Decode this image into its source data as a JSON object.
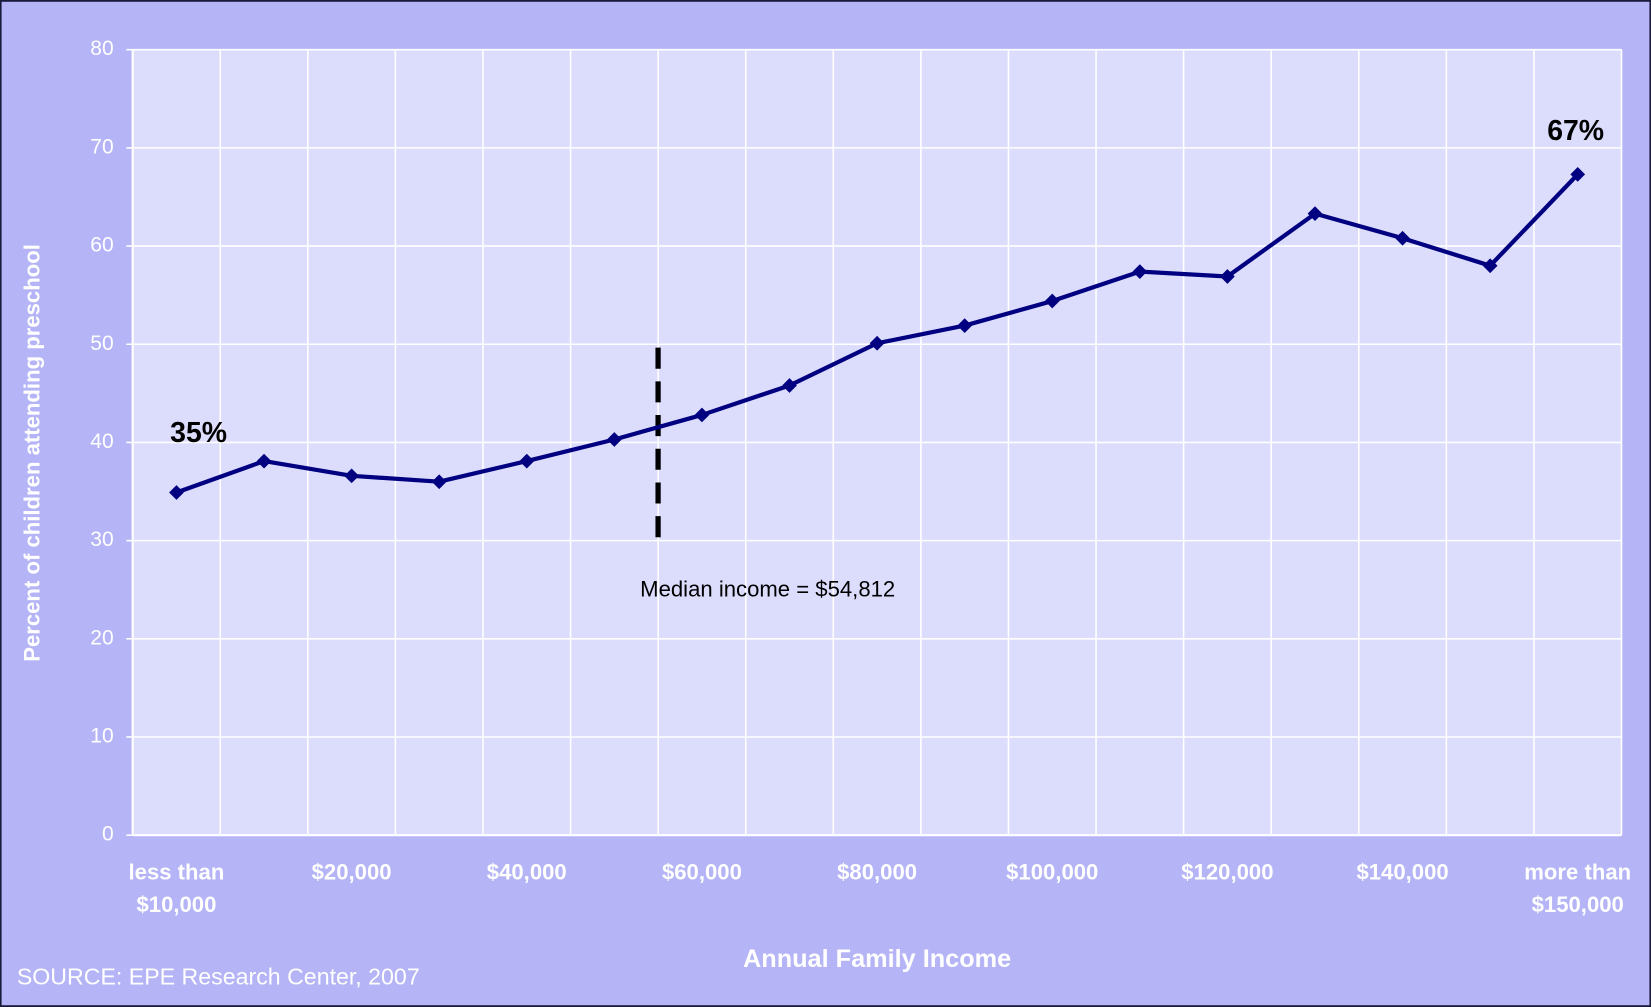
{
  "chart_data": {
    "type": "line",
    "y_label": "Percent of children attending preschool",
    "x_label": "Annual Family Income",
    "source": "SOURCE:  EPE Research Center, 2007",
    "annotation": "Median income = $54,812",
    "categories": [
      "less than $10,000",
      null,
      "$20,000",
      null,
      "$40,000",
      null,
      "$60,000",
      null,
      "$80,000",
      null,
      "$100,000",
      null,
      "$120,000",
      null,
      "$140,000",
      null,
      "more than $150,000"
    ],
    "values": [
      34.9,
      38.1,
      36.6,
      36.0,
      38.1,
      40.3,
      42.8,
      45.8,
      50.1,
      51.9,
      54.4,
      57.4,
      56.9,
      63.3,
      60.8,
      58.0,
      67.3
    ],
    "value_labels": [
      "35%",
      null,
      null,
      null,
      null,
      null,
      null,
      null,
      null,
      null,
      null,
      null,
      null,
      null,
      null,
      null,
      "67%"
    ],
    "color": "#000080",
    "ylim": [
      0,
      80
    ],
    "yticks": [
      0,
      10,
      20,
      30,
      40,
      50,
      60,
      70,
      80
    ],
    "grid": true
  }
}
